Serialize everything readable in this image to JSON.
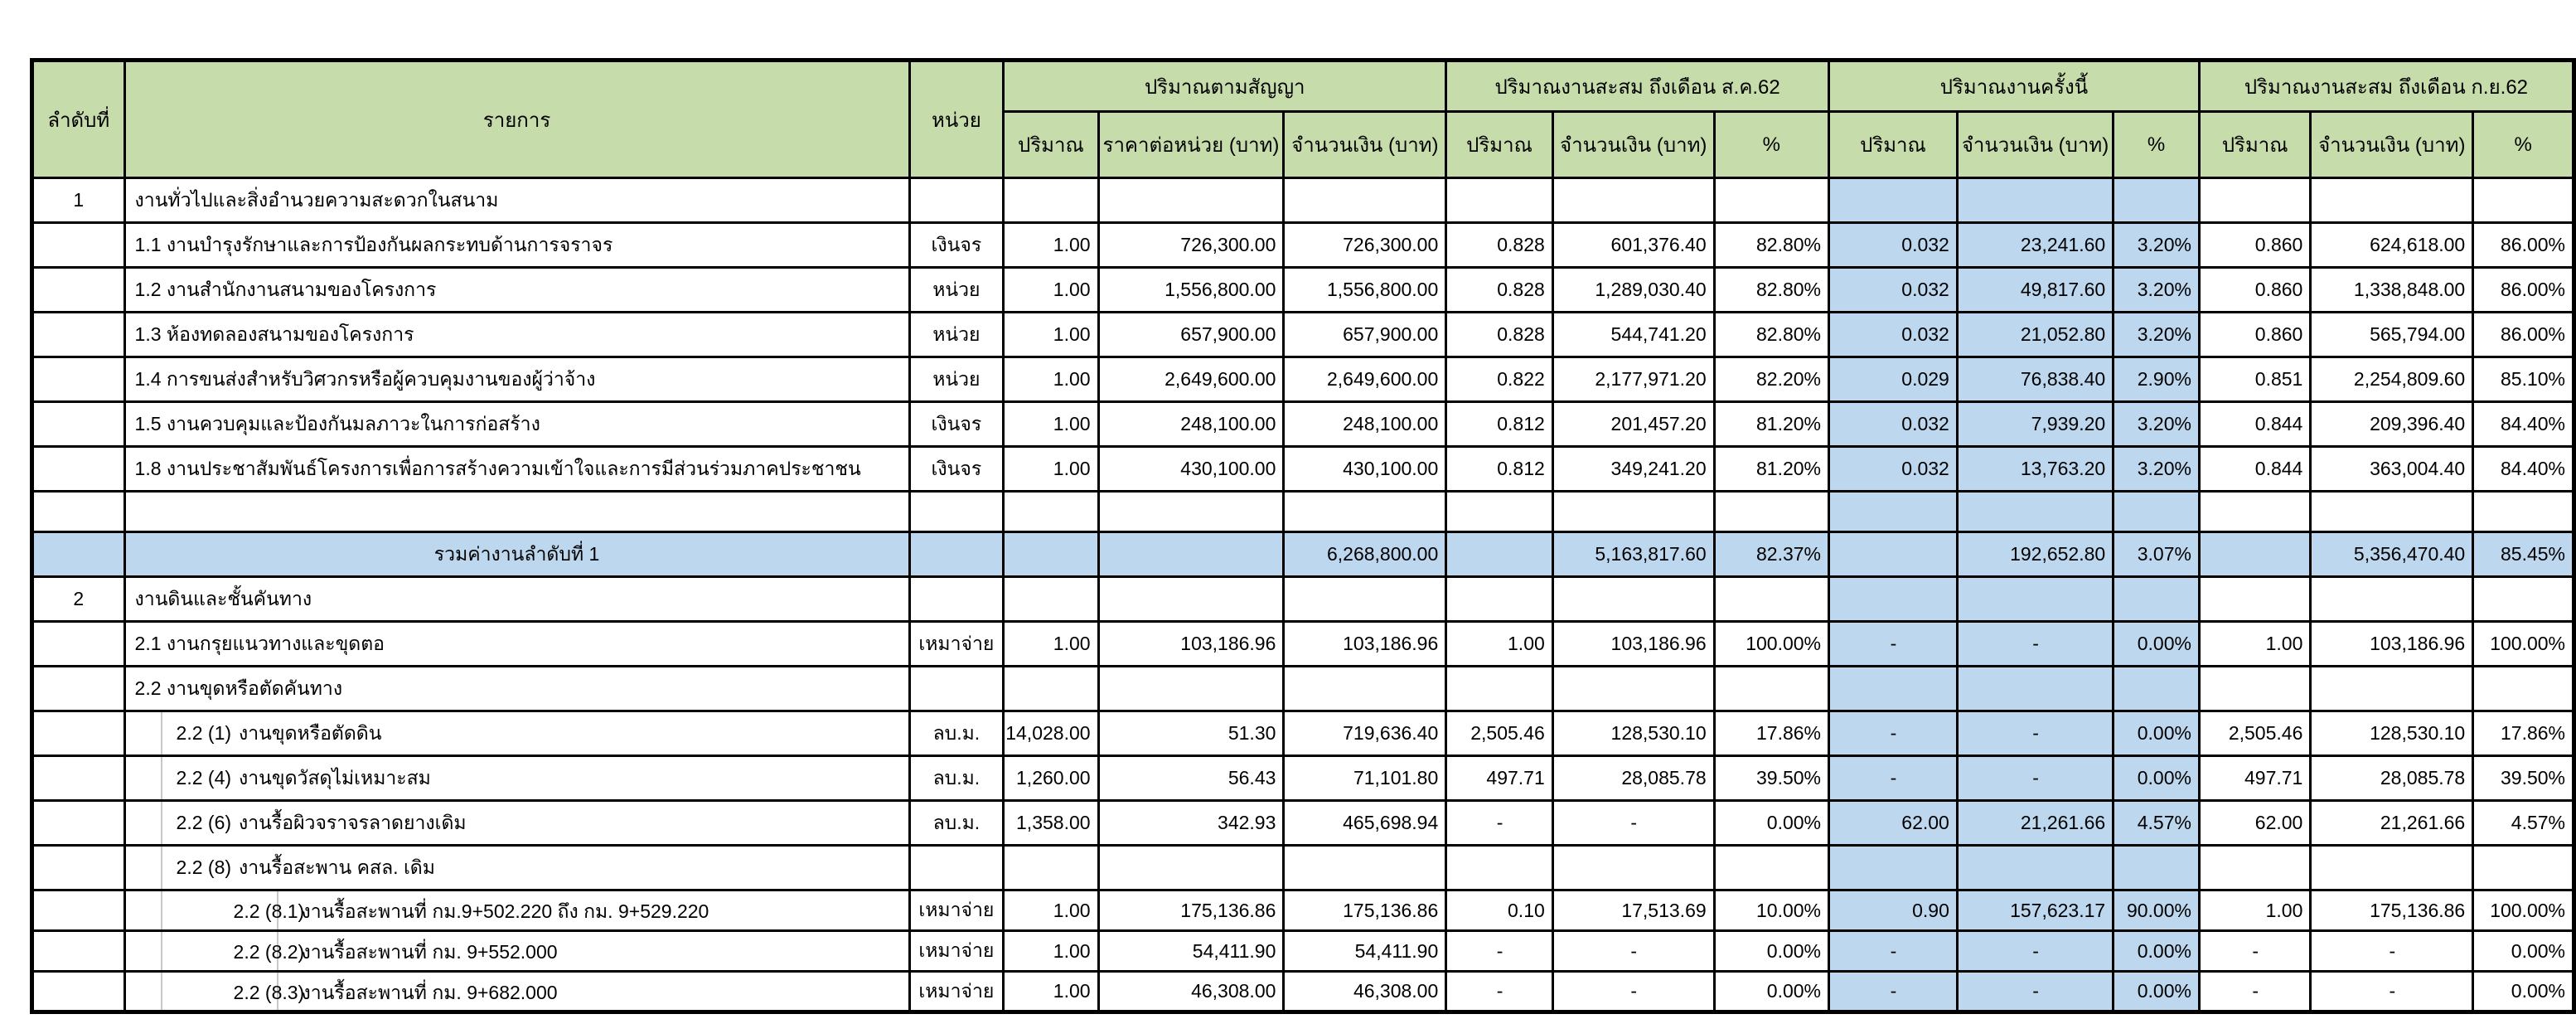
{
  "colors": {
    "header_green": "#c7dcab",
    "highlight_blue": "#bdd7ee",
    "border_black": "#000000",
    "faint_gridline_gray": "#c8c8c8"
  },
  "table": {
    "header": {
      "no": "ลำดับที่",
      "item": "รายการ",
      "unit": "หน่วย",
      "groups": [
        {
          "label": "ปริมาณตามสัญญา",
          "cols": [
            "ปริมาณ",
            "ราคาต่อหน่วย (บาท)",
            "จำนวนเงิน (บาท)"
          ]
        },
        {
          "label": "ปริมาณงานสะสม ถึงเดือน ส.ค.62",
          "cols": [
            "ปริมาณ",
            "จำนวนเงิน (บาท)",
            "%"
          ]
        },
        {
          "label": "ปริมาณงานครั้งนี้",
          "cols": [
            "ปริมาณ",
            "จำนวนเงิน (บาท)",
            "%"
          ]
        },
        {
          "label": "ปริมาณงานสะสม ถึงเดือน ก.ย.62",
          "cols": [
            "ปริมาณ",
            "จำนวนเงิน (บาท)",
            "%"
          ]
        }
      ]
    },
    "rows": [
      {
        "type": "section",
        "no": "1",
        "indent": 0,
        "name": "งานทั่วไปและสิ่งอำนวยความสะดวกในสนาม",
        "unit": "",
        "values": {}
      },
      {
        "type": "item",
        "no": "",
        "indent": 0,
        "name": "1.1 งานบำรุงรักษาและการป้องกันผลกระทบด้านการจราจร",
        "unit": "เงินจร",
        "values": {
          "qty_contract": "1.00",
          "unit_price": "726,300.00",
          "amount_contract": "726,300.00",
          "qty_aug": "0.828",
          "amount_aug": "601,376.40",
          "pct_aug": "82.80%",
          "qty_now": "0.032",
          "amount_now": "23,241.60",
          "pct_now": "3.20%",
          "qty_sep": "0.860",
          "amount_sep": "624,618.00",
          "pct_sep": "86.00%"
        }
      },
      {
        "type": "item",
        "no": "",
        "indent": 0,
        "name": "1.2 งานสำนักงานสนามของโครงการ",
        "unit": "หน่วย",
        "values": {
          "qty_contract": "1.00",
          "unit_price": "1,556,800.00",
          "amount_contract": "1,556,800.00",
          "qty_aug": "0.828",
          "amount_aug": "1,289,030.40",
          "pct_aug": "82.80%",
          "qty_now": "0.032",
          "amount_now": "49,817.60",
          "pct_now": "3.20%",
          "qty_sep": "0.860",
          "amount_sep": "1,338,848.00",
          "pct_sep": "86.00%"
        }
      },
      {
        "type": "item",
        "no": "",
        "indent": 0,
        "name": "1.3 ห้องทดลองสนามของโครงการ",
        "unit": "หน่วย",
        "values": {
          "qty_contract": "1.00",
          "unit_price": "657,900.00",
          "amount_contract": "657,900.00",
          "qty_aug": "0.828",
          "amount_aug": "544,741.20",
          "pct_aug": "82.80%",
          "qty_now": "0.032",
          "amount_now": "21,052.80",
          "pct_now": "3.20%",
          "qty_sep": "0.860",
          "amount_sep": "565,794.00",
          "pct_sep": "86.00%"
        }
      },
      {
        "type": "item",
        "no": "",
        "indent": 0,
        "name": "1.4 การขนส่งสำหรับวิศวกรหรือผู้ควบคุมงานของผู้ว่าจ้าง",
        "unit": "หน่วย",
        "values": {
          "qty_contract": "1.00",
          "unit_price": "2,649,600.00",
          "amount_contract": "2,649,600.00",
          "qty_aug": "0.822",
          "amount_aug": "2,177,971.20",
          "pct_aug": "82.20%",
          "qty_now": "0.029",
          "amount_now": "76,838.40",
          "pct_now": "2.90%",
          "qty_sep": "0.851",
          "amount_sep": "2,254,809.60",
          "pct_sep": "85.10%"
        }
      },
      {
        "type": "item",
        "no": "",
        "indent": 0,
        "name": "1.5 งานควบคุมและป้องกันมลภาวะในการก่อสร้าง",
        "unit": "เงินจร",
        "values": {
          "qty_contract": "1.00",
          "unit_price": "248,100.00",
          "amount_contract": "248,100.00",
          "qty_aug": "0.812",
          "amount_aug": "201,457.20",
          "pct_aug": "81.20%",
          "qty_now": "0.032",
          "amount_now": "7,939.20",
          "pct_now": "3.20%",
          "qty_sep": "0.844",
          "amount_sep": "209,396.40",
          "pct_sep": "84.40%"
        }
      },
      {
        "type": "item",
        "no": "",
        "indent": 0,
        "name": "1.8 งานประชาสัมพันธ์โครงการเพื่อการสร้างความเข้าใจและการมีส่วนร่วมภาคประชาชน",
        "unit": "เงินจร",
        "values": {
          "qty_contract": "1.00",
          "unit_price": "430,100.00",
          "amount_contract": "430,100.00",
          "qty_aug": "0.812",
          "amount_aug": "349,241.20",
          "pct_aug": "81.20%",
          "qty_now": "0.032",
          "amount_now": "13,763.20",
          "pct_now": "3.20%",
          "qty_sep": "0.844",
          "amount_sep": "363,004.40",
          "pct_sep": "84.40%"
        }
      },
      {
        "type": "blank",
        "no": "",
        "indent": 0,
        "name": "",
        "unit": "",
        "values": {}
      },
      {
        "type": "summary",
        "no": "",
        "indent": 0,
        "name": "รวมค่างานลำดับที่ 1",
        "unit": "",
        "values": {
          "amount_contract": "6,268,800.00",
          "amount_aug": "5,163,817.60",
          "pct_aug": "82.37%",
          "amount_now": "192,652.80",
          "pct_now": "3.07%",
          "amount_sep": "5,356,470.40",
          "pct_sep": "85.45%"
        }
      },
      {
        "type": "section",
        "no": "2",
        "indent": 0,
        "name": "งานดินและชั้นคันทาง",
        "unit": "",
        "values": {}
      },
      {
        "type": "item",
        "no": "",
        "indent": 0,
        "name": "2.1 งานกรุยแนวทางและขุดตอ",
        "unit": "เหมาจ่าย",
        "values": {
          "qty_contract": "1.00",
          "unit_price": "103,186.96",
          "amount_contract": "103,186.96",
          "qty_aug": "1.00",
          "amount_aug": "103,186.96",
          "pct_aug": "100.00%",
          "qty_now": "-",
          "amount_now": "-",
          "pct_now": "0.00%",
          "qty_sep": "1.00",
          "amount_sep": "103,186.96",
          "pct_sep": "100.00%"
        }
      },
      {
        "type": "item",
        "no": "",
        "indent": 0,
        "name": "2.2 งานขุดหรือตัดคันทาง",
        "unit": "",
        "values": {}
      },
      {
        "type": "item",
        "no": "",
        "indent": 1,
        "code": "2.2 (1)",
        "name": "งานขุดหรือตัดดิน",
        "unit": "ลบ.ม.",
        "values": {
          "qty_contract": "14,028.00",
          "unit_price": "51.30",
          "amount_contract": "719,636.40",
          "qty_aug": "2,505.46",
          "amount_aug": "128,530.10",
          "pct_aug": "17.86%",
          "qty_now": "-",
          "amount_now": "-",
          "pct_now": "0.00%",
          "qty_sep": "2,505.46",
          "amount_sep": "128,530.10",
          "pct_sep": "17.86%"
        }
      },
      {
        "type": "item",
        "no": "",
        "indent": 1,
        "code": "2.2 (4)",
        "name": "งานขุดวัสดุไม่เหมาะสม",
        "unit": "ลบ.ม.",
        "values": {
          "qty_contract": "1,260.00",
          "unit_price": "56.43",
          "amount_contract": "71,101.80",
          "qty_aug": "497.71",
          "amount_aug": "28,085.78",
          "pct_aug": "39.50%",
          "qty_now": "-",
          "amount_now": "-",
          "pct_now": "0.00%",
          "qty_sep": "497.71",
          "amount_sep": "28,085.78",
          "pct_sep": "39.50%"
        }
      },
      {
        "type": "item",
        "no": "",
        "indent": 1,
        "code": "2.2 (6)",
        "name": "งานรื้อผิวจราจรลาดยางเดิม",
        "unit": "ลบ.ม.",
        "values": {
          "qty_contract": "1,358.00",
          "unit_price": "342.93",
          "amount_contract": "465,698.94",
          "qty_aug": "-",
          "amount_aug": "-",
          "pct_aug": "0.00%",
          "qty_now": "62.00",
          "amount_now": "21,261.66",
          "pct_now": "4.57%",
          "qty_sep": "62.00",
          "amount_sep": "21,261.66",
          "pct_sep": "4.57%"
        }
      },
      {
        "type": "item",
        "no": "",
        "indent": 1,
        "code": "2.2 (8)",
        "name": "งานรื้อสะพาน คสล. เดิม",
        "unit": "",
        "values": {}
      },
      {
        "type": "item",
        "no": "",
        "indent": 2,
        "code": "2.2 (8.1)",
        "name": "งานรื้อสะพานที่ กม.9+502.220 ถึง กม. 9+529.220",
        "unit": "เหมาจ่าย",
        "values": {
          "qty_contract": "1.00",
          "unit_price": "175,136.86",
          "amount_contract": "175,136.86",
          "qty_aug": "0.10",
          "amount_aug": "17,513.69",
          "pct_aug": "10.00%",
          "qty_now": "0.90",
          "amount_now": "157,623.17",
          "pct_now": "90.00%",
          "qty_sep": "1.00",
          "amount_sep": "175,136.86",
          "pct_sep": "100.00%"
        }
      },
      {
        "type": "item",
        "no": "",
        "indent": 2,
        "code": "2.2 (8.2)",
        "name": "งานรื้อสะพานที่ กม. 9+552.000",
        "unit": "เหมาจ่าย",
        "values": {
          "qty_contract": "1.00",
          "unit_price": "54,411.90",
          "amount_contract": "54,411.90",
          "qty_aug": "-",
          "amount_aug": "-",
          "pct_aug": "0.00%",
          "qty_now": "-",
          "amount_now": "-",
          "pct_now": "0.00%",
          "qty_sep": "-",
          "amount_sep": "-",
          "pct_sep": "0.00%"
        }
      },
      {
        "type": "item",
        "no": "",
        "indent": 2,
        "code": "2.2 (8.3)",
        "name": "งานรื้อสะพานที่ กม. 9+682.000",
        "unit": "เหมาจ่าย",
        "values": {
          "qty_contract": "1.00",
          "unit_price": "46,308.00",
          "amount_contract": "46,308.00",
          "qty_aug": "-",
          "amount_aug": "-",
          "pct_aug": "0.00%",
          "qty_now": "-",
          "amount_now": "-",
          "pct_now": "0.00%",
          "qty_sep": "-",
          "amount_sep": "-",
          "pct_sep": "0.00%"
        }
      }
    ]
  }
}
